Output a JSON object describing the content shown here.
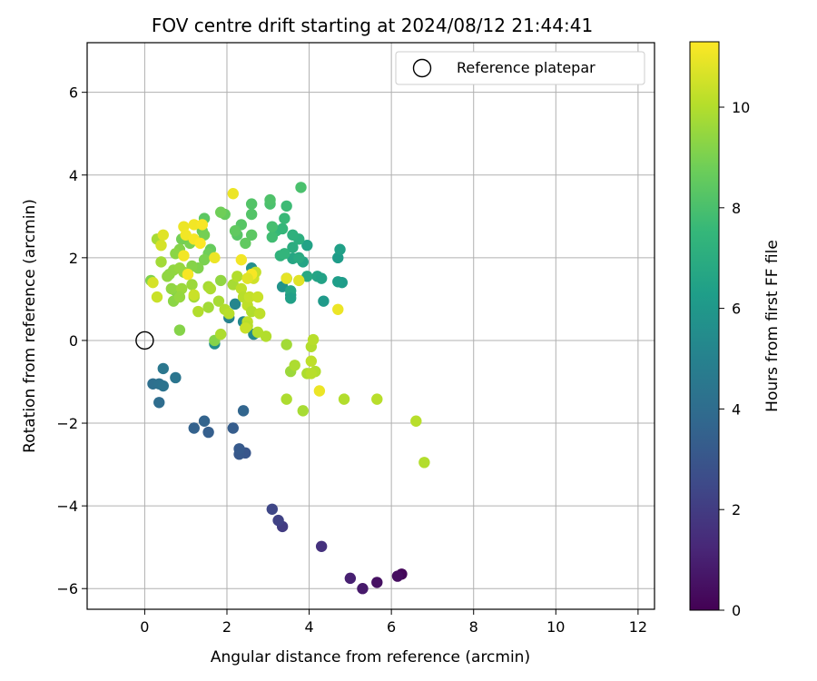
{
  "chart_data": {
    "type": "scatter",
    "title": "FOV centre drift starting at 2024/08/12 21:44:41",
    "xlabel": "Angular distance from reference (arcmin)",
    "ylabel": "Rotation from reference (arcmin)",
    "xlim": [
      -1.4,
      12.4
    ],
    "ylim": [
      -6.5,
      7.2
    ],
    "xticks": [
      0,
      2,
      4,
      6,
      8,
      10,
      12
    ],
    "yticks": [
      -6,
      -4,
      -2,
      0,
      2,
      4,
      6
    ],
    "grid": true,
    "legend": {
      "position": "top-right",
      "entries": [
        "Reference platepar"
      ]
    },
    "reference_point": {
      "x": 0,
      "y": 0,
      "label": "Reference platepar"
    },
    "colorbar": {
      "label": "Hours from first FF file",
      "range": [
        0,
        11.3
      ],
      "ticks": [
        0,
        2,
        4,
        6,
        8,
        10
      ],
      "colormap": "viridis"
    },
    "series": [
      {
        "points": [
          {
            "x": 6.25,
            "y": -5.65,
            "c": 0.2
          },
          {
            "x": 6.15,
            "y": -5.7,
            "c": 0.4
          },
          {
            "x": 5.65,
            "y": -5.85,
            "c": 0.5
          },
          {
            "x": 5.3,
            "y": -6.0,
            "c": 0.8
          },
          {
            "x": 5.0,
            "y": -5.75,
            "c": 1.0
          },
          {
            "x": 4.3,
            "y": -4.98,
            "c": 1.6
          },
          {
            "x": 3.35,
            "y": -4.5,
            "c": 2.0
          },
          {
            "x": 3.25,
            "y": -4.35,
            "c": 2.2
          },
          {
            "x": 3.1,
            "y": -4.08,
            "c": 2.4
          },
          {
            "x": 2.45,
            "y": -2.72,
            "c": 3.0
          },
          {
            "x": 2.3,
            "y": -2.75,
            "c": 3.1
          },
          {
            "x": 2.3,
            "y": -2.62,
            "c": 3.2
          },
          {
            "x": 2.15,
            "y": -2.12,
            "c": 3.3
          },
          {
            "x": 1.55,
            "y": -2.22,
            "c": 3.4
          },
          {
            "x": 1.2,
            "y": -2.12,
            "c": 3.5
          },
          {
            "x": 1.45,
            "y": -1.95,
            "c": 3.6
          },
          {
            "x": 2.4,
            "y": -1.7,
            "c": 3.7
          },
          {
            "x": 0.35,
            "y": -1.5,
            "c": 4.0
          },
          {
            "x": 0.2,
            "y": -1.05,
            "c": 4.1
          },
          {
            "x": 0.35,
            "y": -1.05,
            "c": 4.2
          },
          {
            "x": 0.45,
            "y": -1.1,
            "c": 4.3
          },
          {
            "x": 0.75,
            "y": -0.9,
            "c": 4.4
          },
          {
            "x": 0.45,
            "y": -0.68,
            "c": 4.5
          },
          {
            "x": 2.05,
            "y": 0.55,
            "c": 5.0
          },
          {
            "x": 2.2,
            "y": 0.88,
            "c": 5.2
          },
          {
            "x": 2.4,
            "y": 0.45,
            "c": 5.3
          },
          {
            "x": 2.65,
            "y": 0.15,
            "c": 5.4
          },
          {
            "x": 1.7,
            "y": -0.08,
            "c": 5.5
          },
          {
            "x": 2.6,
            "y": 1.75,
            "c": 5.6
          },
          {
            "x": 3.35,
            "y": 1.3,
            "c": 5.8
          },
          {
            "x": 3.55,
            "y": 1.1,
            "c": 5.9
          },
          {
            "x": 3.45,
            "y": 1.5,
            "c": 6.0
          },
          {
            "x": 4.35,
            "y": 0.95,
            "c": 6.1
          },
          {
            "x": 4.8,
            "y": 1.4,
            "c": 6.2
          },
          {
            "x": 4.7,
            "y": 1.42,
            "c": 6.3
          },
          {
            "x": 4.7,
            "y": 2.0,
            "c": 6.2
          },
          {
            "x": 4.75,
            "y": 2.2,
            "c": 6.4
          },
          {
            "x": 3.95,
            "y": 2.3,
            "c": 6.5
          },
          {
            "x": 3.85,
            "y": 1.9,
            "c": 6.6
          },
          {
            "x": 3.6,
            "y": 1.98,
            "c": 6.7
          },
          {
            "x": 4.2,
            "y": 1.55,
            "c": 6.6
          },
          {
            "x": 4.3,
            "y": 1.5,
            "c": 6.5
          },
          {
            "x": 3.95,
            "y": 1.55,
            "c": 6.8
          },
          {
            "x": 3.75,
            "y": 2.0,
            "c": 6.9
          },
          {
            "x": 3.55,
            "y": 1.2,
            "c": 6.7
          },
          {
            "x": 3.55,
            "y": 1.02,
            "c": 6.4
          },
          {
            "x": 3.6,
            "y": 2.25,
            "c": 7.0
          },
          {
            "x": 3.75,
            "y": 2.45,
            "c": 7.1
          },
          {
            "x": 3.6,
            "y": 2.55,
            "c": 7.2
          },
          {
            "x": 3.3,
            "y": 2.05,
            "c": 7.3
          },
          {
            "x": 3.4,
            "y": 2.1,
            "c": 7.4
          },
          {
            "x": 3.2,
            "y": 2.65,
            "c": 7.6
          },
          {
            "x": 3.35,
            "y": 2.7,
            "c": 7.5
          },
          {
            "x": 3.4,
            "y": 2.95,
            "c": 7.6
          },
          {
            "x": 3.45,
            "y": 3.25,
            "c": 7.7
          },
          {
            "x": 3.1,
            "y": 2.5,
            "c": 7.8
          },
          {
            "x": 3.1,
            "y": 2.75,
            "c": 7.9
          },
          {
            "x": 3.05,
            "y": 3.3,
            "c": 8.0
          },
          {
            "x": 3.05,
            "y": 3.4,
            "c": 8.1
          },
          {
            "x": 2.6,
            "y": 3.3,
            "c": 8.2
          },
          {
            "x": 2.6,
            "y": 3.05,
            "c": 8.2
          },
          {
            "x": 2.35,
            "y": 2.8,
            "c": 8.3
          },
          {
            "x": 2.25,
            "y": 2.55,
            "c": 8.3
          },
          {
            "x": 2.6,
            "y": 2.55,
            "c": 8.4
          },
          {
            "x": 2.45,
            "y": 2.35,
            "c": 8.5
          },
          {
            "x": 2.2,
            "y": 2.65,
            "c": 8.5
          },
          {
            "x": 3.8,
            "y": 3.7,
            "c": 8.0
          },
          {
            "x": 1.45,
            "y": 2.95,
            "c": 8.4
          },
          {
            "x": 1.95,
            "y": 3.05,
            "c": 8.6
          },
          {
            "x": 1.85,
            "y": 3.1,
            "c": 8.8
          },
          {
            "x": 1.4,
            "y": 2.65,
            "c": 8.7
          },
          {
            "x": 1.45,
            "y": 2.55,
            "c": 8.9
          },
          {
            "x": 1.6,
            "y": 2.2,
            "c": 8.6
          },
          {
            "x": 1.55,
            "y": 2.1,
            "c": 8.8
          },
          {
            "x": 1.45,
            "y": 1.95,
            "c": 9.0
          },
          {
            "x": 1.1,
            "y": 2.35,
            "c": 9.0
          },
          {
            "x": 0.9,
            "y": 2.45,
            "c": 8.9
          },
          {
            "x": 1.3,
            "y": 1.75,
            "c": 9.1
          },
          {
            "x": 1.15,
            "y": 1.8,
            "c": 9.2
          },
          {
            "x": 0.85,
            "y": 2.2,
            "c": 9.2
          },
          {
            "x": 0.75,
            "y": 2.1,
            "c": 9.3
          },
          {
            "x": 0.6,
            "y": 1.6,
            "c": 9.3
          },
          {
            "x": 0.55,
            "y": 1.55,
            "c": 9.4
          },
          {
            "x": 0.7,
            "y": 1.7,
            "c": 9.4
          },
          {
            "x": 0.85,
            "y": 1.75,
            "c": 9.5
          },
          {
            "x": 0.95,
            "y": 1.65,
            "c": 9.5
          },
          {
            "x": 1.05,
            "y": 1.6,
            "c": 9.6
          },
          {
            "x": 0.15,
            "y": 1.45,
            "c": 9.1
          },
          {
            "x": 0.4,
            "y": 1.9,
            "c": 9.7
          },
          {
            "x": 0.3,
            "y": 2.45,
            "c": 9.8
          },
          {
            "x": 0.75,
            "y": 1.2,
            "c": 9.2
          },
          {
            "x": 0.65,
            "y": 1.25,
            "c": 9.4
          },
          {
            "x": 0.9,
            "y": 1.25,
            "c": 9.6
          },
          {
            "x": 0.7,
            "y": 0.95,
            "c": 9.3
          },
          {
            "x": 0.85,
            "y": 1.05,
            "c": 9.5
          },
          {
            "x": 0.85,
            "y": 0.25,
            "c": 9.2
          },
          {
            "x": 1.15,
            "y": 1.35,
            "c": 9.6
          },
          {
            "x": 1.2,
            "y": 1.05,
            "c": 9.7
          },
          {
            "x": 1.55,
            "y": 1.3,
            "c": 9.8
          },
          {
            "x": 1.6,
            "y": 1.25,
            "c": 9.9
          },
          {
            "x": 1.3,
            "y": 0.7,
            "c": 10.0
          },
          {
            "x": 1.55,
            "y": 0.8,
            "c": 9.7
          },
          {
            "x": 1.8,
            "y": 0.95,
            "c": 9.8
          },
          {
            "x": 1.7,
            "y": 0.0,
            "c": 9.2
          },
          {
            "x": 1.85,
            "y": 0.15,
            "c": 9.9
          },
          {
            "x": 1.85,
            "y": 1.45,
            "c": 9.4
          },
          {
            "x": 1.95,
            "y": 0.75,
            "c": 10.0
          },
          {
            "x": 2.05,
            "y": 0.65,
            "c": 10.1
          },
          {
            "x": 2.15,
            "y": 1.35,
            "c": 9.8
          },
          {
            "x": 2.25,
            "y": 1.55,
            "c": 10.0
          },
          {
            "x": 2.35,
            "y": 1.25,
            "c": 10.2
          },
          {
            "x": 2.4,
            "y": 1.05,
            "c": 10.1
          },
          {
            "x": 2.5,
            "y": 0.85,
            "c": 10.2
          },
          {
            "x": 2.55,
            "y": 1.05,
            "c": 10.3
          },
          {
            "x": 2.6,
            "y": 0.7,
            "c": 10.0
          },
          {
            "x": 2.5,
            "y": 0.45,
            "c": 10.2
          },
          {
            "x": 2.5,
            "y": 0.35,
            "c": 10.1
          },
          {
            "x": 2.45,
            "y": 0.3,
            "c": 10.4
          },
          {
            "x": 2.65,
            "y": 1.5,
            "c": 10.5
          },
          {
            "x": 2.7,
            "y": 1.65,
            "c": 10.3
          },
          {
            "x": 2.75,
            "y": 1.05,
            "c": 10.4
          },
          {
            "x": 2.75,
            "y": 0.2,
            "c": 10.0
          },
          {
            "x": 2.8,
            "y": 0.65,
            "c": 10.2
          },
          {
            "x": 2.95,
            "y": 0.1,
            "c": 10.0
          },
          {
            "x": 3.45,
            "y": -0.1,
            "c": 9.7
          },
          {
            "x": 3.55,
            "y": -0.75,
            "c": 9.6
          },
          {
            "x": 3.65,
            "y": -0.6,
            "c": 9.9
          },
          {
            "x": 3.85,
            "y": -1.7,
            "c": 9.8
          },
          {
            "x": 3.45,
            "y": -1.42,
            "c": 9.9
          },
          {
            "x": 3.95,
            "y": -0.8,
            "c": 9.9
          },
          {
            "x": 4.05,
            "y": -0.15,
            "c": 10.0
          },
          {
            "x": 4.1,
            "y": 0.02,
            "c": 10.1
          },
          {
            "x": 4.05,
            "y": -0.5,
            "c": 10.2
          },
          {
            "x": 4.15,
            "y": -0.75,
            "c": 10.0
          },
          {
            "x": 4.05,
            "y": -0.8,
            "c": 10.1
          },
          {
            "x": 4.85,
            "y": -1.42,
            "c": 10.0
          },
          {
            "x": 5.65,
            "y": -1.42,
            "c": 10.1
          },
          {
            "x": 6.6,
            "y": -1.95,
            "c": 10.1
          },
          {
            "x": 6.8,
            "y": -2.95,
            "c": 10.0
          },
          {
            "x": 3.75,
            "y": 1.45,
            "c": 10.8
          },
          {
            "x": 3.45,
            "y": 1.5,
            "c": 10.9
          },
          {
            "x": 4.25,
            "y": -1.22,
            "c": 11.0
          },
          {
            "x": 4.7,
            "y": 0.75,
            "c": 11.0
          },
          {
            "x": 2.15,
            "y": 3.55,
            "c": 11.0
          },
          {
            "x": 1.2,
            "y": 2.8,
            "c": 11.1
          },
          {
            "x": 1.4,
            "y": 2.8,
            "c": 11.2
          },
          {
            "x": 0.95,
            "y": 2.75,
            "c": 11.0
          },
          {
            "x": 1.0,
            "y": 2.55,
            "c": 11.1
          },
          {
            "x": 0.45,
            "y": 2.55,
            "c": 10.8
          },
          {
            "x": 0.4,
            "y": 2.3,
            "c": 10.6
          },
          {
            "x": 1.2,
            "y": 2.45,
            "c": 11.2
          },
          {
            "x": 1.35,
            "y": 2.35,
            "c": 11.3
          },
          {
            "x": 1.7,
            "y": 2.0,
            "c": 11.0
          },
          {
            "x": 0.95,
            "y": 2.05,
            "c": 11.1
          },
          {
            "x": 1.05,
            "y": 1.6,
            "c": 11.2
          },
          {
            "x": 0.3,
            "y": 1.05,
            "c": 10.4
          },
          {
            "x": 0.2,
            "y": 1.4,
            "c": 10.6
          },
          {
            "x": 1.2,
            "y": 1.1,
            "c": 10.4
          },
          {
            "x": 2.35,
            "y": 1.95,
            "c": 11.1
          },
          {
            "x": 2.6,
            "y": 1.6,
            "c": 11.2
          },
          {
            "x": 2.5,
            "y": 1.5,
            "c": 10.8
          }
        ]
      }
    ]
  }
}
